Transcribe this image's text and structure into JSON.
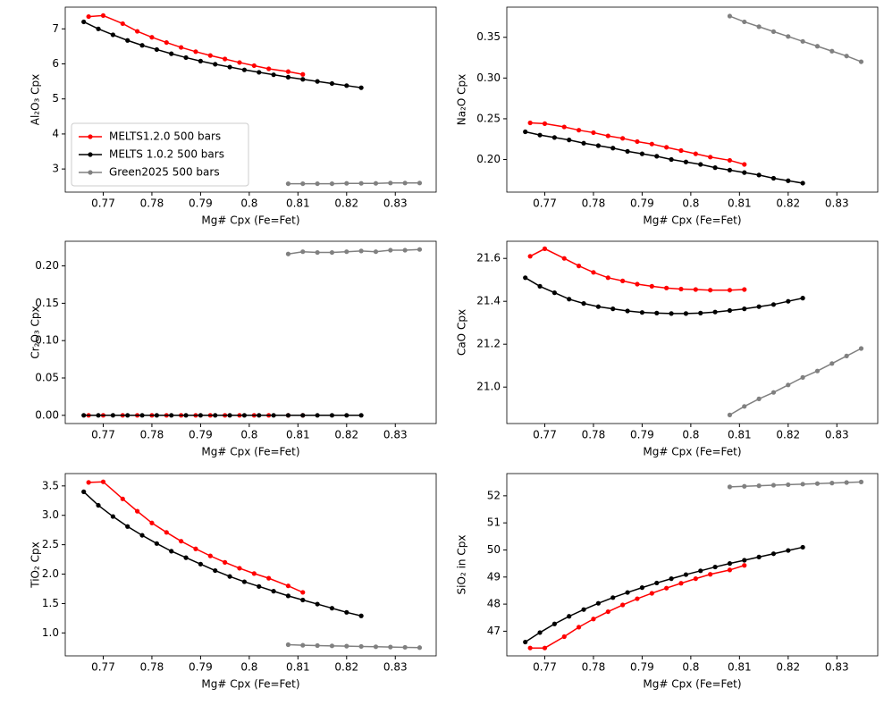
{
  "chart_data": [
    {
      "type": "line",
      "xlabel": "Mg# Cpx (Fe=Fet)",
      "ylabel": "Al₂O₃ Cpx",
      "legend": "lower left",
      "xlim": [
        0.7622,
        0.8384
      ],
      "xticks": [
        0.77,
        0.78,
        0.79,
        0.8,
        0.81,
        0.82,
        0.83
      ],
      "ylim": [
        2.34,
        7.62
      ],
      "yticks": [
        3,
        4,
        5,
        6,
        7
      ],
      "series": [
        {
          "name": "MELTS1.2.0 500 bars",
          "color": "#ff0000",
          "x": [
            0.767,
            0.77,
            0.774,
            0.777,
            0.78,
            0.783,
            0.786,
            0.789,
            0.792,
            0.795,
            0.798,
            0.801,
            0.804,
            0.808,
            0.811
          ],
          "values": [
            7.35,
            7.38,
            7.15,
            6.93,
            6.76,
            6.61,
            6.47,
            6.35,
            6.24,
            6.14,
            6.04,
            5.95,
            5.86,
            5.78,
            5.7
          ]
        },
        {
          "name": "MELTS 1.0.2 500 bars",
          "color": "#000000",
          "x": [
            0.766,
            0.769,
            0.772,
            0.775,
            0.778,
            0.781,
            0.784,
            0.787,
            0.79,
            0.793,
            0.796,
            0.799,
            0.802,
            0.805,
            0.808,
            0.811,
            0.814,
            0.817,
            0.82,
            0.823
          ],
          "values": [
            7.2,
            7.0,
            6.83,
            6.67,
            6.53,
            6.41,
            6.29,
            6.18,
            6.08,
            5.99,
            5.91,
            5.83,
            5.76,
            5.69,
            5.62,
            5.56,
            5.5,
            5.44,
            5.38,
            5.32
          ]
        },
        {
          "name": "Green2025 500 bars",
          "color": "#808080",
          "x": [
            0.808,
            0.811,
            0.814,
            0.817,
            0.82,
            0.823,
            0.826,
            0.829,
            0.832,
            0.835
          ],
          "values": [
            2.58,
            2.58,
            2.58,
            2.58,
            2.59,
            2.59,
            2.59,
            2.6,
            2.6,
            2.6
          ]
        }
      ]
    },
    {
      "type": "line",
      "xlabel": "Mg# Cpx (Fe=Fet)",
      "ylabel": "Na₂O Cpx",
      "xlim": [
        0.7622,
        0.8384
      ],
      "xticks": [
        0.77,
        0.78,
        0.79,
        0.8,
        0.81,
        0.82,
        0.83
      ],
      "ylim": [
        0.16,
        0.387
      ],
      "yticks": [
        {
          "value": 0.2,
          "label": "0.20"
        },
        0.25,
        {
          "value": 0.3,
          "label": "0.30"
        },
        0.35
      ],
      "series": [
        {
          "name": "MELTS1.2.0 500 bars",
          "color": "#ff0000",
          "x": [
            0.767,
            0.77,
            0.774,
            0.777,
            0.78,
            0.783,
            0.786,
            0.789,
            0.792,
            0.795,
            0.798,
            0.801,
            0.804,
            0.808,
            0.811
          ],
          "values": [
            0.245,
            0.244,
            0.24,
            0.236,
            0.233,
            0.229,
            0.226,
            0.222,
            0.219,
            0.215,
            0.211,
            0.207,
            0.203,
            0.199,
            0.194
          ]
        },
        {
          "name": "MELTS 1.0.2 500 bars",
          "color": "#000000",
          "x": [
            0.766,
            0.769,
            0.772,
            0.775,
            0.778,
            0.781,
            0.784,
            0.787,
            0.79,
            0.793,
            0.796,
            0.799,
            0.802,
            0.805,
            0.808,
            0.811,
            0.814,
            0.817,
            0.82,
            0.823
          ],
          "values": [
            0.234,
            0.23,
            0.227,
            0.224,
            0.22,
            0.217,
            0.214,
            0.21,
            0.207,
            0.204,
            0.2,
            0.197,
            0.194,
            0.19,
            0.187,
            0.184,
            0.181,
            0.177,
            0.174,
            0.171
          ]
        },
        {
          "name": "Green2025 500 bars",
          "color": "#808080",
          "x": [
            0.808,
            0.811,
            0.814,
            0.817,
            0.82,
            0.823,
            0.826,
            0.829,
            0.832,
            0.835
          ],
          "values": [
            0.376,
            0.369,
            0.363,
            0.357,
            0.351,
            0.345,
            0.339,
            0.333,
            0.327,
            0.32
          ]
        }
      ]
    },
    {
      "type": "line",
      "xlabel": "Mg# Cpx (Fe=Fet)",
      "ylabel": "Cr₂O₃ Cpx",
      "xlim": [
        0.7622,
        0.8384
      ],
      "xticks": [
        0.77,
        0.78,
        0.79,
        0.8,
        0.81,
        0.82,
        0.83
      ],
      "ylim": [
        -0.011,
        0.233
      ],
      "yticks": [
        {
          "value": 0,
          "label": "0.00"
        },
        0.05,
        {
          "value": 0.1,
          "label": "0.10"
        },
        0.15,
        {
          "value": 0.2,
          "label": "0.20"
        }
      ],
      "series": [
        {
          "name": "MELTS1.2.0 500 bars",
          "color": "#ff0000",
          "x": [
            0.767,
            0.77,
            0.774,
            0.777,
            0.78,
            0.783,
            0.786,
            0.789,
            0.792,
            0.795,
            0.798,
            0.801,
            0.804,
            0.808,
            0.811
          ],
          "values": [
            0,
            0,
            0,
            0,
            0,
            0,
            0,
            0,
            0,
            0,
            0,
            0,
            0,
            0,
            0
          ]
        },
        {
          "name": "MELTS 1.0.2 500 bars",
          "color": "#000000",
          "x": [
            0.766,
            0.769,
            0.772,
            0.775,
            0.778,
            0.781,
            0.784,
            0.787,
            0.79,
            0.793,
            0.796,
            0.799,
            0.802,
            0.805,
            0.808,
            0.811,
            0.814,
            0.817,
            0.82,
            0.823
          ],
          "values": [
            0,
            0,
            0,
            0,
            0,
            0,
            0,
            0,
            0,
            0,
            0,
            0,
            0,
            0,
            0,
            0,
            0,
            0,
            0,
            0
          ]
        },
        {
          "name": "Green2025 500 bars",
          "color": "#808080",
          "x": [
            0.808,
            0.811,
            0.814,
            0.817,
            0.82,
            0.823,
            0.826,
            0.829,
            0.832,
            0.835
          ],
          "values": [
            0.216,
            0.219,
            0.218,
            0.218,
            0.219,
            0.22,
            0.219,
            0.221,
            0.221,
            0.222
          ]
        }
      ]
    },
    {
      "type": "line",
      "xlabel": "Mg# Cpx (Fe=Fet)",
      "ylabel": "CaO Cpx",
      "xlim": [
        0.7622,
        0.8384
      ],
      "xticks": [
        0.77,
        0.78,
        0.79,
        0.8,
        0.81,
        0.82,
        0.83
      ],
      "ylim": [
        20.83,
        21.68
      ],
      "yticks": [
        {
          "value": 21,
          "label": "21.0"
        },
        21.2,
        21.4,
        21.6
      ],
      "series": [
        {
          "name": "MELTS1.2.0 500 bars",
          "color": "#ff0000",
          "x": [
            0.767,
            0.77,
            0.774,
            0.777,
            0.78,
            0.783,
            0.786,
            0.789,
            0.792,
            0.795,
            0.798,
            0.801,
            0.804,
            0.808,
            0.811
          ],
          "values": [
            21.61,
            21.645,
            21.6,
            21.565,
            21.535,
            21.51,
            21.495,
            21.48,
            21.47,
            21.462,
            21.457,
            21.455,
            21.452,
            21.452,
            21.455
          ]
        },
        {
          "name": "MELTS 1.0.2 500 bars",
          "color": "#000000",
          "x": [
            0.766,
            0.769,
            0.772,
            0.775,
            0.778,
            0.781,
            0.784,
            0.787,
            0.79,
            0.793,
            0.796,
            0.799,
            0.802,
            0.805,
            0.808,
            0.811,
            0.814,
            0.817,
            0.82,
            0.823
          ],
          "values": [
            21.51,
            21.47,
            21.44,
            21.41,
            21.39,
            21.375,
            21.365,
            21.355,
            21.348,
            21.345,
            21.343,
            21.343,
            21.345,
            21.35,
            21.357,
            21.365,
            21.375,
            21.385,
            21.4,
            21.415
          ]
        },
        {
          "name": "Green2025 500 bars",
          "color": "#808080",
          "x": [
            0.808,
            0.811,
            0.814,
            0.817,
            0.82,
            0.823,
            0.826,
            0.829,
            0.832,
            0.835
          ],
          "values": [
            20.87,
            20.91,
            20.945,
            20.975,
            21.01,
            21.045,
            21.075,
            21.11,
            21.145,
            21.18
          ]
        }
      ]
    },
    {
      "type": "line",
      "xlabel": "Mg# Cpx (Fe=Fet)",
      "ylabel": "TiO₂ Cpx",
      "xlim": [
        0.7622,
        0.8384
      ],
      "xticks": [
        0.77,
        0.78,
        0.79,
        0.8,
        0.81,
        0.82,
        0.83
      ],
      "ylim": [
        0.61,
        3.71
      ],
      "yticks": [
        {
          "value": 1,
          "label": "1.0"
        },
        1.5,
        {
          "value": 2,
          "label": "2.0"
        },
        2.5,
        {
          "value": 3,
          "label": "3.0"
        },
        3.5
      ],
      "series": [
        {
          "name": "MELTS1.2.0 500 bars",
          "color": "#ff0000",
          "x": [
            0.767,
            0.77,
            0.774,
            0.777,
            0.78,
            0.783,
            0.786,
            0.789,
            0.792,
            0.795,
            0.798,
            0.801,
            0.804,
            0.808,
            0.811
          ],
          "values": [
            3.56,
            3.57,
            3.28,
            3.07,
            2.87,
            2.71,
            2.56,
            2.43,
            2.31,
            2.2,
            2.1,
            2.01,
            1.93,
            1.8,
            1.69
          ]
        },
        {
          "name": "MELTS 1.0.2 500 bars",
          "color": "#000000",
          "x": [
            0.766,
            0.769,
            0.772,
            0.775,
            0.778,
            0.781,
            0.784,
            0.787,
            0.79,
            0.793,
            0.796,
            0.799,
            0.802,
            0.805,
            0.808,
            0.811,
            0.814,
            0.817,
            0.82,
            0.823
          ],
          "values": [
            3.4,
            3.17,
            2.98,
            2.81,
            2.66,
            2.52,
            2.39,
            2.28,
            2.17,
            2.06,
            1.96,
            1.87,
            1.79,
            1.71,
            1.63,
            1.56,
            1.49,
            1.42,
            1.35,
            1.29
          ]
        },
        {
          "name": "Green2025 500 bars",
          "color": "#808080",
          "x": [
            0.808,
            0.811,
            0.814,
            0.817,
            0.82,
            0.823,
            0.826,
            0.829,
            0.832,
            0.835
          ],
          "values": [
            0.8,
            0.79,
            0.785,
            0.78,
            0.775,
            0.77,
            0.765,
            0.76,
            0.755,
            0.75
          ]
        }
      ]
    },
    {
      "type": "line",
      "xlabel": "Mg# Cpx (Fe=Fet)",
      "ylabel": "SiO₂ in Cpx",
      "xlim": [
        0.7622,
        0.8384
      ],
      "xticks": [
        0.77,
        0.78,
        0.79,
        0.8,
        0.81,
        0.82,
        0.83
      ],
      "ylim": [
        46.09,
        52.82
      ],
      "yticks": [
        47,
        48,
        49,
        50,
        51,
        52
      ],
      "series": [
        {
          "name": "MELTS1.2.0 500 bars",
          "color": "#ff0000",
          "x": [
            0.767,
            0.77,
            0.774,
            0.777,
            0.78,
            0.783,
            0.786,
            0.789,
            0.792,
            0.795,
            0.798,
            0.801,
            0.804,
            0.808,
            0.811
          ],
          "values": [
            46.38,
            46.38,
            46.8,
            47.15,
            47.45,
            47.72,
            47.97,
            48.2,
            48.4,
            48.59,
            48.77,
            48.94,
            49.1,
            49.26,
            49.43
          ]
        },
        {
          "name": "MELTS 1.0.2 500 bars",
          "color": "#000000",
          "x": [
            0.766,
            0.769,
            0.772,
            0.775,
            0.778,
            0.781,
            0.784,
            0.787,
            0.79,
            0.793,
            0.796,
            0.799,
            0.802,
            0.805,
            0.808,
            0.811,
            0.814,
            0.817,
            0.82,
            0.823
          ],
          "values": [
            46.6,
            46.95,
            47.27,
            47.55,
            47.8,
            48.03,
            48.24,
            48.43,
            48.61,
            48.78,
            48.94,
            49.09,
            49.23,
            49.37,
            49.5,
            49.62,
            49.74,
            49.86,
            49.98,
            50.1
          ]
        },
        {
          "name": "Green2025 500 bars",
          "color": "#808080",
          "x": [
            0.808,
            0.811,
            0.814,
            0.817,
            0.82,
            0.823,
            0.826,
            0.829,
            0.832,
            0.835
          ],
          "values": [
            52.33,
            52.35,
            52.37,
            52.39,
            52.41,
            52.43,
            52.45,
            52.47,
            52.49,
            52.51
          ]
        }
      ]
    }
  ]
}
